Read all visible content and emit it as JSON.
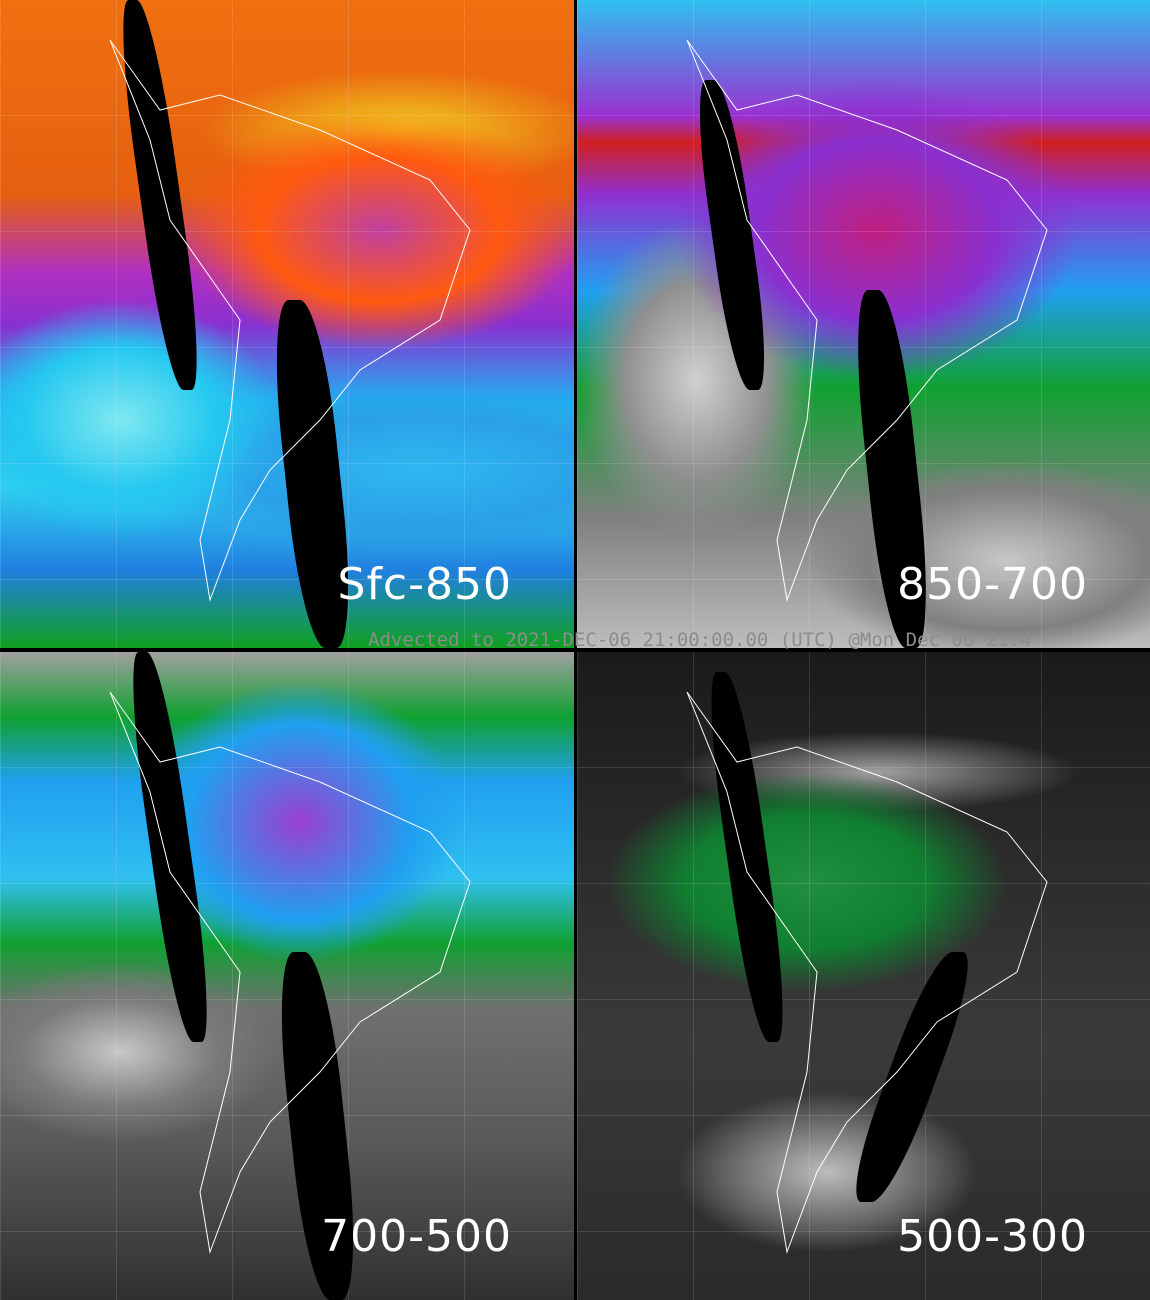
{
  "panels": [
    {
      "label": "Sfc-850"
    },
    {
      "label": "850-700"
    },
    {
      "label": "700-500"
    },
    {
      "label": "500-300"
    }
  ],
  "caption": "Advected to 2021-DEC-06 21:00:00.00 (UTC) @Mon Dec 06 21:4",
  "colors": {
    "background": "#000000",
    "coastline": "#ffffff",
    "caption": "#8c8c8c"
  }
}
